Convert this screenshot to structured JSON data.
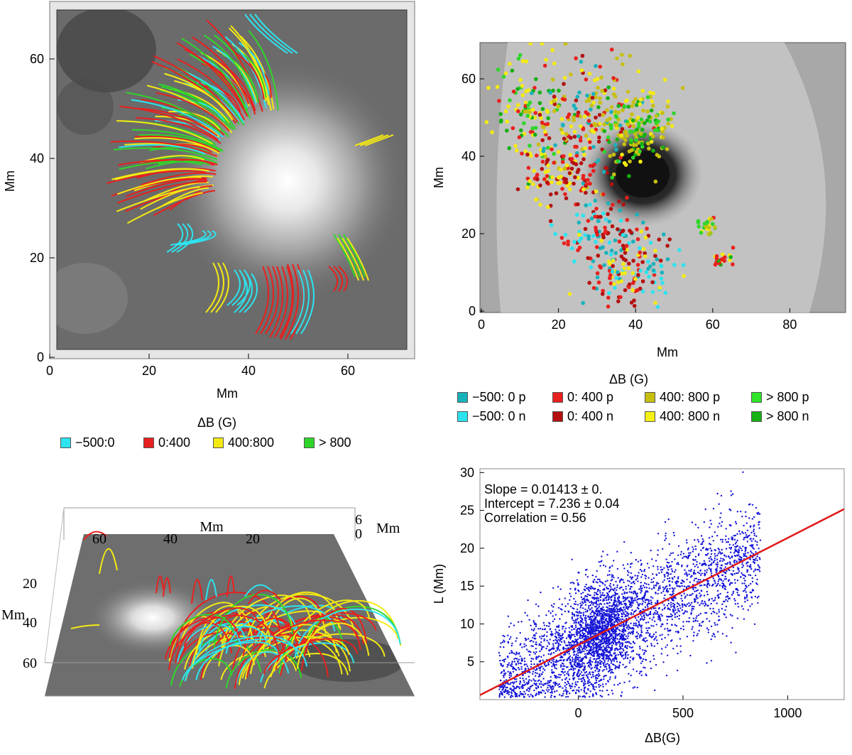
{
  "colors": {
    "cyan": "#2de3ef",
    "red": "#e8201e",
    "yellow": "#f4ea12",
    "green": "#2fd62a",
    "dark_cyan": "#18b2bb",
    "dark_red": "#b41010",
    "olive": "#c7bf10",
    "dark_green": "#14b014",
    "scatter": "#1414d8",
    "fit": "#e01818"
  },
  "top_left": {
    "xlabel": "Mm",
    "ylabel": "Mm",
    "xticks": [
      "0",
      "20",
      "40",
      "60"
    ],
    "yticks": [
      "0",
      "20",
      "40",
      "60"
    ],
    "legend_title": "ΔB (G)",
    "legend": [
      {
        "label": "−500:0",
        "color": "#2de3ef"
      },
      {
        "label": "0:400",
        "color": "#e8201e"
      },
      {
        "label": "400:800",
        "color": "#f4ea12"
      },
      {
        "label": "> 800",
        "color": "#2fd62a"
      }
    ]
  },
  "top_right": {
    "xlabel": "Mm",
    "ylabel": "Mm",
    "xticks": [
      "0",
      "20",
      "40",
      "60",
      "80"
    ],
    "yticks": [
      "0",
      "20",
      "40",
      "60"
    ],
    "legend_title": "ΔB (G)",
    "legend": [
      {
        "label": "−500: 0 p",
        "color": "#18b2bb"
      },
      {
        "label": "0: 400 p",
        "color": "#e8201e"
      },
      {
        "label": "400: 800 p",
        "color": "#c7bf10"
      },
      {
        "label": "> 800 p",
        "color": "#2fe52a"
      },
      {
        "label": "−500: 0 n",
        "color": "#2de3ef"
      },
      {
        "label": "0: 400 n",
        "color": "#b41010"
      },
      {
        "label": "400: 800 n",
        "color": "#f4f012"
      },
      {
        "label": "> 800 n",
        "color": "#14b014"
      }
    ]
  },
  "bottom_left": {
    "top_axis_label": "Mm",
    "side_axis_label": "Mm",
    "z_axis_label": "Mm",
    "top_ticks": [
      "60",
      "40",
      "20"
    ],
    "side_ticks": [
      "20",
      "40",
      "60"
    ],
    "z_ticks": [
      "6",
      "0"
    ]
  },
  "chart_data": {
    "type": "scatter",
    "title": "",
    "xlabel": "ΔB(G)",
    "ylabel": "L (Mm)",
    "xlim": [
      -470,
      1270
    ],
    "ylim": [
      0,
      30.5
    ],
    "xticks": [
      "0",
      "500",
      "1000"
    ],
    "yticks": [
      "5",
      "10",
      "15",
      "20",
      "25",
      "30"
    ],
    "fit": {
      "slope": 0.01413,
      "intercept": 7.236,
      "correlation": 0.56
    },
    "annotations": [
      "Slope = 0.01413 ± 0.",
      "Intercept = 7.236 ± 0.04",
      "Correlation = 0.56"
    ],
    "n_points": 4000
  }
}
